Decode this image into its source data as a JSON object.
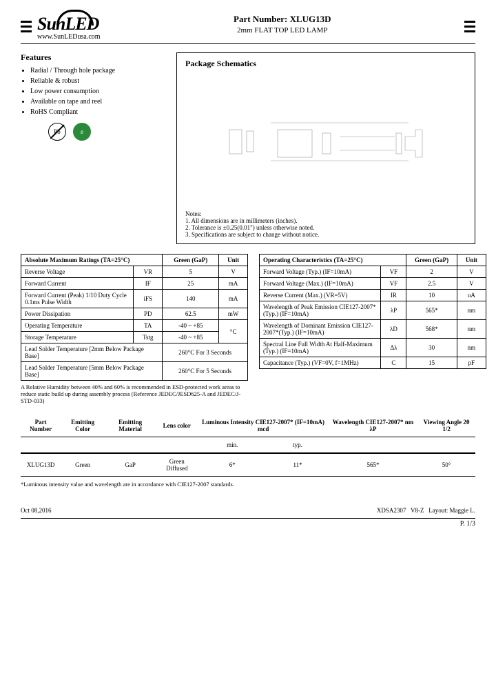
{
  "header": {
    "logo_text": "SunLED",
    "logo_url": "www.SunLEDusa.com",
    "part_label": "Part Number: XLUG13D",
    "part_desc": "2mm FLAT TOP LED LAMP"
  },
  "features": {
    "title": "Features",
    "items": [
      "Radial / Through hole package",
      "Reliable & robust",
      "Low power consumption",
      "Available on tape and reel",
      "RoHS Compliant"
    ]
  },
  "schematics": {
    "title": "Package Schematics",
    "notes_label": "Notes:",
    "notes": [
      "1. All dimensions are in millimeters (inches).",
      "2. Tolerance is ±0.25(0.01\") unless otherwise noted.",
      "3. Specifications are subject to change without notice."
    ]
  },
  "abs_max": {
    "title": "Absolute Maximum Ratings (TA=25°C)",
    "col_green": "Green (GaP)",
    "col_unit": "Unit",
    "rows": [
      {
        "p": "Reverse Voltage",
        "s": "VR",
        "v": "5",
        "u": "V"
      },
      {
        "p": "Forward Current",
        "s": "IF",
        "v": "25",
        "u": "mA"
      },
      {
        "p": "Forward Current (Peak) 1/10 Duty Cycle 0.1ms Pulse Width",
        "s": "iFS",
        "v": "140",
        "u": "mA"
      },
      {
        "p": "Power Dissipation",
        "s": "PD",
        "v": "62.5",
        "u": "mW"
      },
      {
        "p": "Operating Temperature",
        "s": "TA",
        "v": "-40 ~ +85",
        "u": "°C"
      },
      {
        "p": "Storage Temperature",
        "s": "Tstg",
        "v": "-40 ~ +85",
        "u": "°C"
      }
    ],
    "solder1_p": "Lead Solder Temperature [2mm Below Package Base]",
    "solder1_v": "260°C For 3 Seconds",
    "solder2_p": "Lead Solder Temperature [5mm Below Package Base]",
    "solder2_v": "260°C For 5 Seconds",
    "footnote": "A Relative Humidity between 40% and 60% is recommended in ESD-protected work areas to reduce static build up during assembly process (Reference JEDEC/JESD625-A and JEDEC/J-STD-033)"
  },
  "op_char": {
    "title": "Operating Characteristics (TA=25°C)",
    "col_green": "Green (GaP)",
    "col_unit": "Unit",
    "rows": [
      {
        "p": "Forward Voltage (Typ.) (IF=10mA)",
        "s": "VF",
        "v": "2",
        "u": "V"
      },
      {
        "p": "Forward Voltage (Max.) (IF=10mA)",
        "s": "VF",
        "v": "2.5",
        "u": "V"
      },
      {
        "p": "Reverse Current (Max.) (VR=5V)",
        "s": "IR",
        "v": "10",
        "u": "uA"
      },
      {
        "p": "Wavelength of Peak Emission CIE127-2007*(Typ.) (IF=10mA)",
        "s": "λP",
        "v": "565*",
        "u": "nm"
      },
      {
        "p": "Wavelength of Dominant Emission CIE127-2007*(Typ.) (IF=10mA)",
        "s": "λD",
        "v": "568*",
        "u": "nm"
      },
      {
        "p": "Spectral Line Full Width At Half-Maximum (Typ.) (IF=10mA)",
        "s": "Δλ",
        "v": "30",
        "u": "nm"
      },
      {
        "p": "Capacitance (Typ.) (VF=0V, f=1MHz)",
        "s": "C",
        "v": "15",
        "u": "pF"
      }
    ]
  },
  "summary": {
    "headers": [
      "Part Number",
      "Emitting Color",
      "Emitting Material",
      "Lens color",
      "Luminous Intensity CIE127-2007* (IF=10mA) mcd",
      "Wavelength CIE127-2007* nm λP",
      "Viewing Angle 2θ 1/2"
    ],
    "sub_min": "min.",
    "sub_typ": "typ.",
    "row": [
      "XLUG13D",
      "Green",
      "GaP",
      "Green Diffused",
      "6*",
      "11*",
      "565*",
      "50°"
    ],
    "note": "*Luminous intensity value and wavelength are in accordance with CIE127-2007 standards."
  },
  "footer": {
    "date": "Oct 08,2016",
    "code": "XDSA2307",
    "ver": "V8-Z",
    "layout": "Layout: Maggie L.",
    "page": "P. 1/3"
  }
}
